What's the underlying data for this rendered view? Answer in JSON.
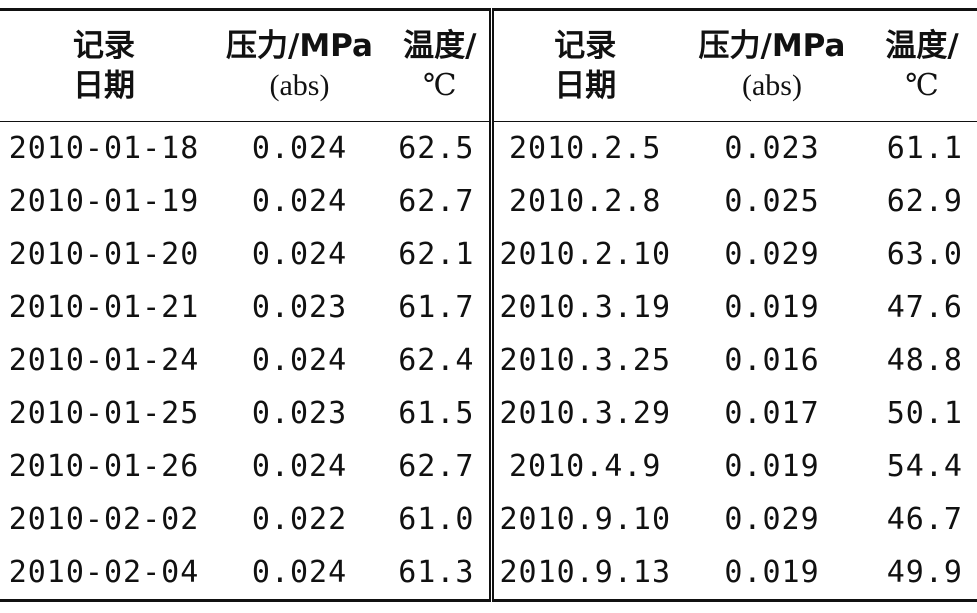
{
  "header": {
    "left": {
      "date": [
        "记录",
        "日期"
      ],
      "pressure": [
        "压力/MPa",
        "(abs)"
      ],
      "temperature": [
        "温度/",
        "℃"
      ]
    },
    "right": {
      "date": [
        "记录",
        "日期"
      ],
      "pressure": [
        "压力/MPa",
        "(abs)"
      ],
      "temperature": [
        "温度/",
        "℃"
      ]
    }
  },
  "rows": [
    {
      "left": {
        "date": "2010-01-18",
        "pressure": "0.024",
        "temperature": "62.5"
      },
      "right": {
        "date": "2010.2.5",
        "pressure": "0.023",
        "temperature": "61.1"
      }
    },
    {
      "left": {
        "date": "2010-01-19",
        "pressure": "0.024",
        "temperature": "62.7"
      },
      "right": {
        "date": "2010.2.8",
        "pressure": "0.025",
        "temperature": "62.9"
      }
    },
    {
      "left": {
        "date": "2010-01-20",
        "pressure": "0.024",
        "temperature": "62.1"
      },
      "right": {
        "date": "2010.2.10",
        "pressure": "0.029",
        "temperature": "63.0"
      }
    },
    {
      "left": {
        "date": "2010-01-21",
        "pressure": "0.023",
        "temperature": "61.7"
      },
      "right": {
        "date": "2010.3.19",
        "pressure": "0.019",
        "temperature": "47.6"
      }
    },
    {
      "left": {
        "date": "2010-01-24",
        "pressure": "0.024",
        "temperature": "62.4"
      },
      "right": {
        "date": "2010.3.25",
        "pressure": "0.016",
        "temperature": "48.8"
      }
    },
    {
      "left": {
        "date": "2010-01-25",
        "pressure": "0.023",
        "temperature": "61.5"
      },
      "right": {
        "date": "2010.3.29",
        "pressure": "0.017",
        "temperature": "50.1"
      }
    },
    {
      "left": {
        "date": "2010-01-26",
        "pressure": "0.024",
        "temperature": "62.7"
      },
      "right": {
        "date": "2010.4.9",
        "pressure": "0.019",
        "temperature": "54.4"
      }
    },
    {
      "left": {
        "date": "2010-02-02",
        "pressure": "0.022",
        "temperature": "61.0"
      },
      "right": {
        "date": "2010.9.10",
        "pressure": "0.029",
        "temperature": "46.7"
      }
    },
    {
      "left": {
        "date": "2010-02-04",
        "pressure": "0.024",
        "temperature": "61.3"
      },
      "right": {
        "date": "2010.9.13",
        "pressure": "0.019",
        "temperature": "49.9"
      }
    }
  ]
}
